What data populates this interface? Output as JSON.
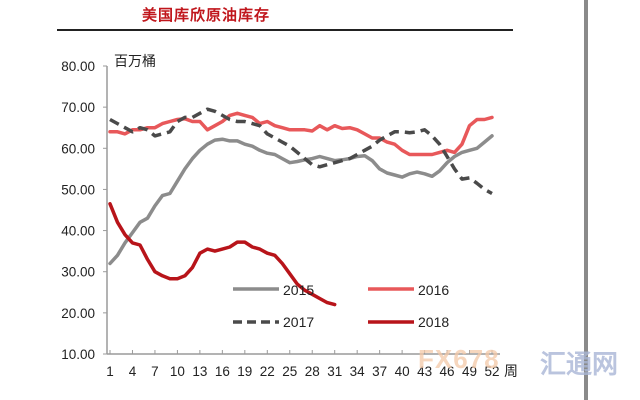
{
  "header": {
    "title": "美国库欣原油库存"
  },
  "watermark": {
    "brand": "FX678",
    "brand_cn": "汇通网"
  },
  "chart_data": {
    "type": "line",
    "title": "美国库欣原油库存",
    "ylabel": "百万桶",
    "xlabel": "周",
    "ylim": [
      10,
      80
    ],
    "yticks": [
      "80.00",
      "70.00",
      "60.00",
      "50.00",
      "40.00",
      "30.00",
      "20.00",
      "10.00"
    ],
    "xticks": [
      "1",
      "4",
      "7",
      "10",
      "13",
      "16",
      "19",
      "22",
      "25",
      "28",
      "31",
      "34",
      "37",
      "40",
      "43",
      "46",
      "49",
      "52"
    ],
    "grid": false,
    "legend_position": "inside lower center",
    "series": [
      {
        "name": "2015",
        "color": "#8c8c8c",
        "style": "solid",
        "x": [
          1,
          2,
          3,
          4,
          5,
          6,
          7,
          8,
          9,
          10,
          11,
          12,
          13,
          14,
          15,
          16,
          17,
          18,
          19,
          20,
          21,
          22,
          23,
          24,
          25,
          26,
          27,
          28,
          29,
          30,
          31,
          32,
          33,
          34,
          35,
          36,
          37,
          38,
          39,
          40,
          41,
          42,
          43,
          44,
          45,
          46,
          47,
          48,
          49,
          50,
          51,
          52
        ],
        "values": [
          32,
          34,
          37,
          39.5,
          42,
          43,
          46,
          48.5,
          49,
          52,
          55,
          57.5,
          59.5,
          61,
          62,
          62.2,
          61.8,
          61.8,
          61,
          60.5,
          59.5,
          58.8,
          58.5,
          57.5,
          56.5,
          56.8,
          57.2,
          57.5,
          58,
          57.5,
          57,
          57.2,
          57.5,
          58,
          58.2,
          57,
          55,
          54,
          53.5,
          53,
          53.8,
          54.2,
          53.8,
          53.2,
          54.5,
          56.5,
          58,
          59,
          59.5,
          60,
          61.5,
          63
        ]
      },
      {
        "name": "2016",
        "color": "#e8585a",
        "style": "solid",
        "x": [
          1,
          2,
          3,
          4,
          5,
          6,
          7,
          8,
          9,
          10,
          11,
          12,
          13,
          14,
          15,
          16,
          17,
          18,
          19,
          20,
          21,
          22,
          23,
          24,
          25,
          26,
          27,
          28,
          29,
          30,
          31,
          32,
          33,
          34,
          35,
          36,
          37,
          38,
          39,
          40,
          41,
          42,
          43,
          44,
          45,
          46,
          47,
          48,
          49,
          50,
          51,
          52
        ],
        "values": [
          64,
          64,
          63.5,
          64.5,
          64.5,
          65,
          65,
          66,
          66.5,
          67,
          67.2,
          66.5,
          66.5,
          64.5,
          65.5,
          66.5,
          68,
          68.5,
          68,
          67.5,
          66,
          66.5,
          65.5,
          65,
          64.5,
          64.5,
          64.5,
          64.2,
          65.5,
          64.5,
          65.5,
          64.8,
          65,
          64.5,
          63.5,
          62.5,
          62.5,
          61.5,
          61,
          59.5,
          58.5,
          58.5,
          58.5,
          58.5,
          59,
          59.5,
          59,
          61,
          65.5,
          67,
          67,
          67.5
        ]
      },
      {
        "name": "2017",
        "color": "#4a4a4a",
        "style": "dashed",
        "x": [
          1,
          2,
          3,
          4,
          5,
          6,
          7,
          8,
          9,
          10,
          11,
          12,
          13,
          14,
          15,
          16,
          17,
          18,
          19,
          20,
          21,
          22,
          23,
          24,
          25,
          26,
          27,
          28,
          29,
          30,
          31,
          32,
          33,
          34,
          35,
          36,
          37,
          38,
          39,
          40,
          41,
          42,
          43,
          44,
          45,
          46,
          47,
          48,
          49,
          50,
          51,
          52
        ],
        "values": [
          67,
          66,
          65,
          64,
          65,
          64.5,
          63,
          63.5,
          64,
          66.5,
          67.5,
          67.5,
          68.5,
          69.5,
          69,
          68,
          67,
          66.5,
          66.5,
          66,
          65.5,
          63.5,
          62.5,
          61.5,
          60.5,
          59,
          57.5,
          56,
          55.5,
          56,
          56.5,
          57,
          57.5,
          58.5,
          59.5,
          60.5,
          62,
          63,
          64,
          64,
          63.8,
          64,
          64.5,
          63,
          61,
          58,
          55,
          52.5,
          52.8,
          51.5,
          50,
          49
        ]
      },
      {
        "name": "2018",
        "color": "#b8141a",
        "style": "solid",
        "x": [
          1,
          2,
          3,
          4,
          5,
          6,
          7,
          8,
          9,
          10,
          11,
          12,
          13,
          14,
          15,
          16,
          17,
          18,
          19,
          20,
          21,
          22,
          23,
          24,
          25,
          26,
          27,
          28,
          29,
          30,
          31
        ],
        "values": [
          46.5,
          42,
          39,
          37,
          36.5,
          33,
          30,
          29,
          28.3,
          28.3,
          29,
          31,
          34.5,
          35.5,
          35,
          35.5,
          36,
          37.2,
          37.2,
          36,
          35.5,
          34.5,
          34,
          32,
          29.5,
          27,
          25.5,
          24.5,
          23.5,
          22.5,
          22
        ]
      }
    ]
  }
}
